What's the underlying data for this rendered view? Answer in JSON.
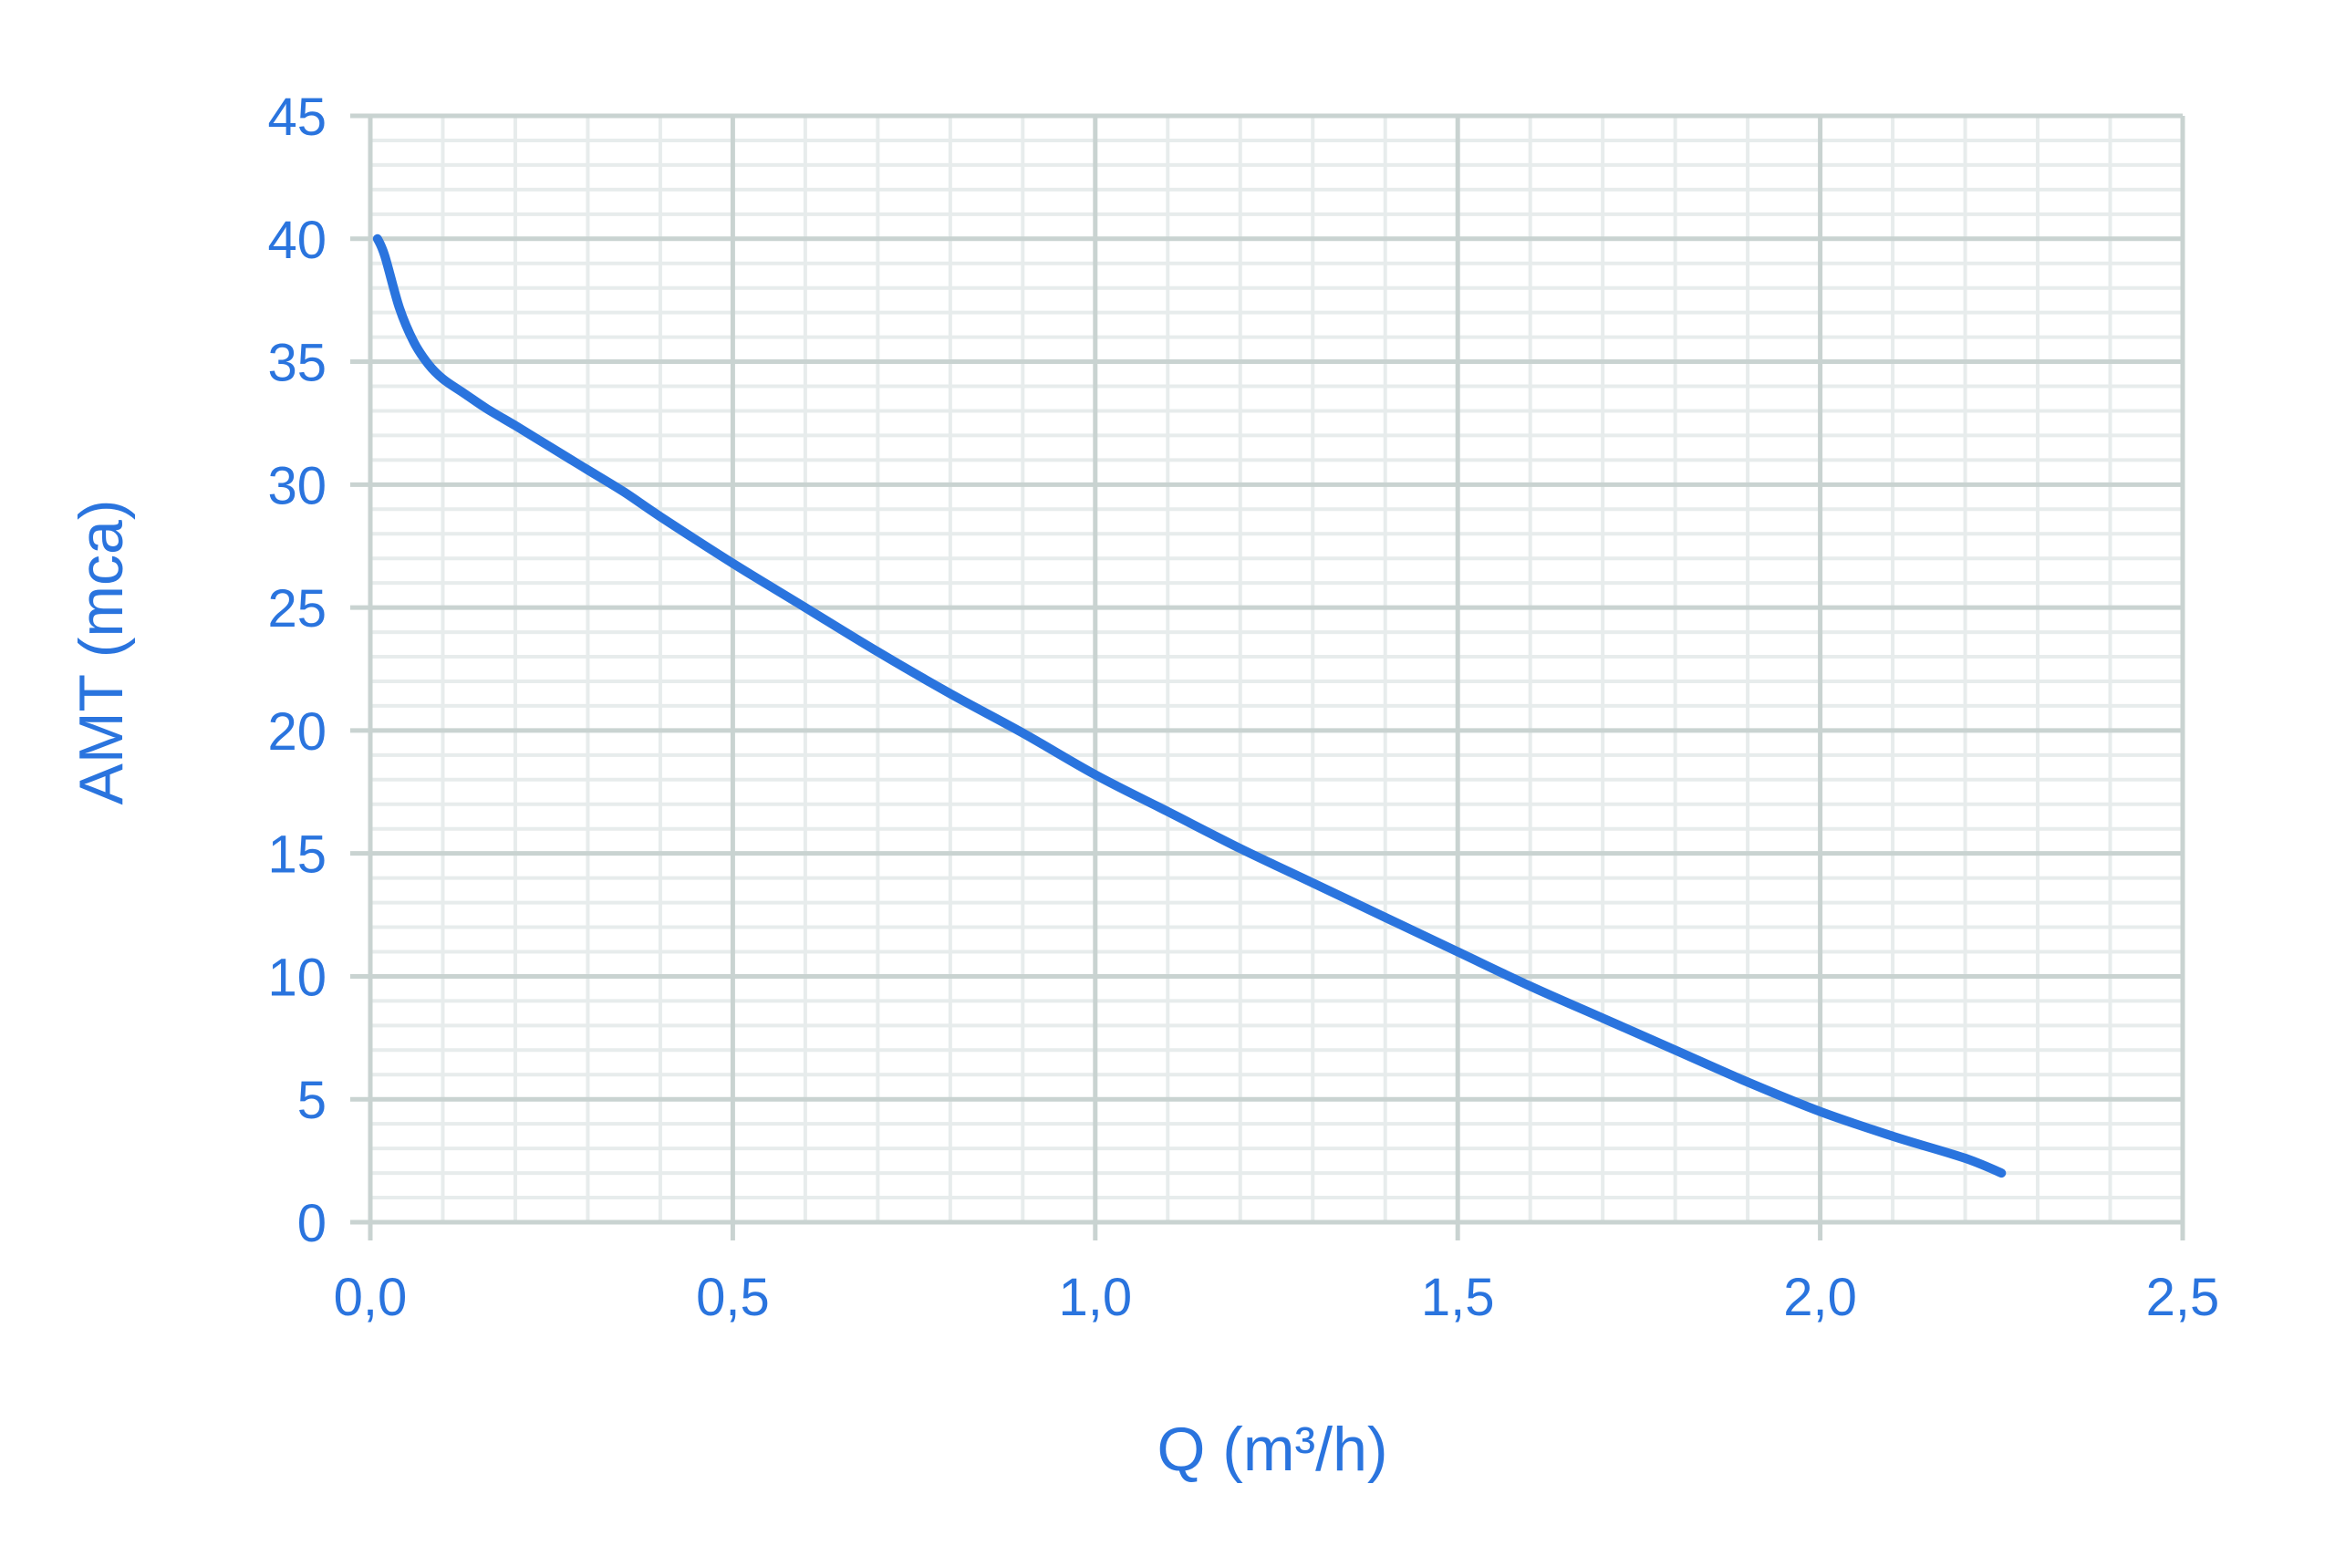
{
  "chart_data": {
    "type": "line",
    "title": "",
    "xlabel": "Q (m³/h)",
    "ylabel": "AMT (mca)",
    "xlim": [
      0,
      2.5
    ],
    "ylim": [
      0,
      45
    ],
    "x_ticks": [
      "0,0",
      "0,5",
      "1,0",
      "1,5",
      "2,0",
      "2,5"
    ],
    "y_ticks": [
      "0",
      "5",
      "10",
      "15",
      "20",
      "25",
      "30",
      "35",
      "40",
      "45"
    ],
    "x_tick_values": [
      0,
      0.5,
      1.0,
      1.5,
      2.0,
      2.5
    ],
    "y_tick_values": [
      0,
      5,
      10,
      15,
      20,
      25,
      30,
      35,
      40,
      45
    ],
    "grid": true,
    "legend": "none",
    "series": [
      {
        "color": "#2a74de",
        "x": [
          0.01,
          0.02,
          0.04,
          0.06,
          0.08,
          0.1,
          0.13,
          0.16,
          0.2,
          0.25,
          0.3,
          0.35,
          0.4,
          0.5,
          0.6,
          0.7,
          0.8,
          0.9,
          1.0,
          1.1,
          1.2,
          1.3,
          1.4,
          1.5,
          1.6,
          1.7,
          1.8,
          1.9,
          2.0,
          2.1,
          2.2,
          2.25
        ],
        "y": [
          40.0,
          39.3,
          37.2,
          35.8,
          34.9,
          34.3,
          33.7,
          33.1,
          32.4,
          31.5,
          30.6,
          29.7,
          28.7,
          26.8,
          25.0,
          23.2,
          21.5,
          19.9,
          18.2,
          16.7,
          15.2,
          13.8,
          12.4,
          11.0,
          9.6,
          8.3,
          7.0,
          5.7,
          4.5,
          3.5,
          2.6,
          2.0
        ]
      }
    ],
    "colors": {
      "text": "#2a74de",
      "line": "#2a74de",
      "major_grid": "#c9d3d1",
      "minor_grid": "#e7ecec",
      "axis": "#c9d3d1"
    }
  }
}
